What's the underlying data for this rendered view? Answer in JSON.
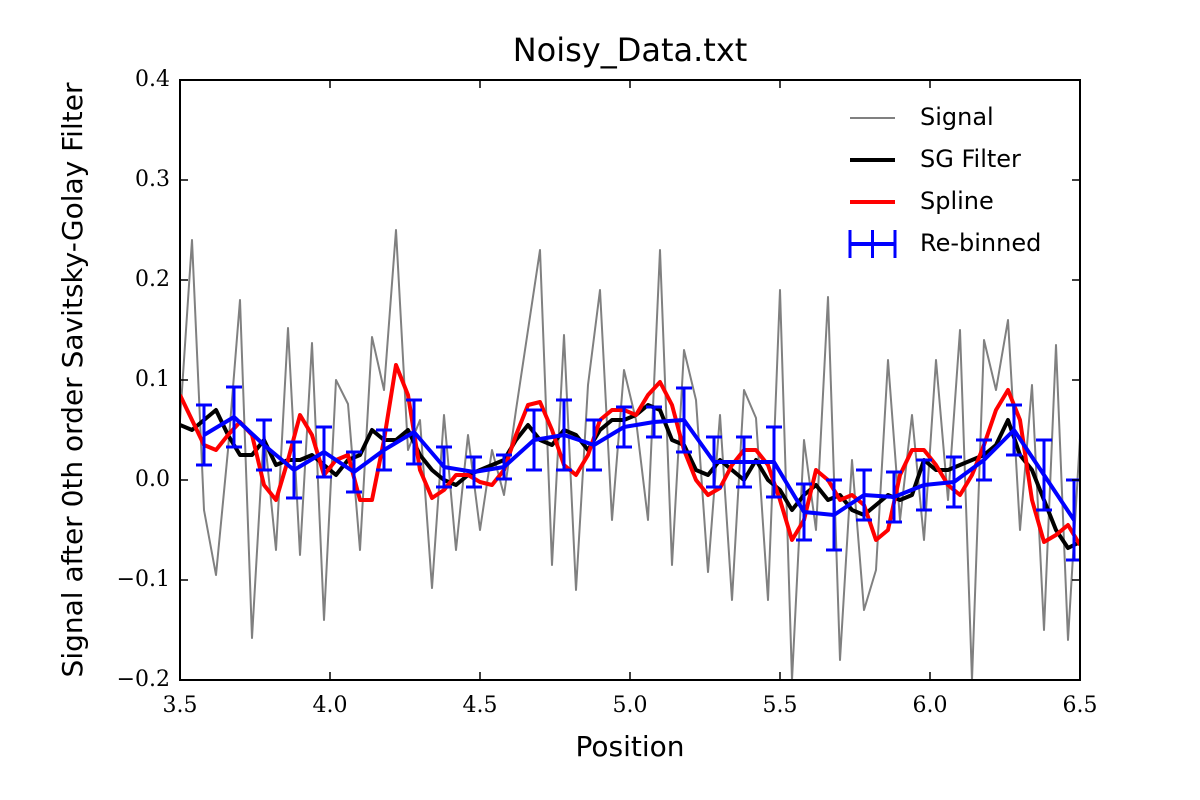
{
  "chart_data": {
    "type": "line",
    "title": "Noisy_Data.txt",
    "x_label": "Position",
    "y_label": "Signal after 0th order Savitsky-Golay Filter",
    "xlim": [
      3.5,
      6.5
    ],
    "ylim": [
      -0.2,
      0.4
    ],
    "xticks": [
      3.5,
      {
        "value": 4,
        "label": "4.0"
      },
      4.5,
      {
        "value": 5,
        "label": "5.0"
      },
      5.5,
      {
        "value": 6,
        "label": "6.0"
      },
      6.5
    ],
    "yticks": [
      {
        "value": -0.2,
        "label": "−0.2"
      },
      {
        "value": -0.1,
        "label": "−0.1"
      },
      {
        "value": 0,
        "label": "0.0"
      },
      0.1,
      0.2,
      0.3,
      0.4
    ],
    "grid": false,
    "legend_position": "upper-right",
    "x": [
      3.5,
      3.54,
      3.58,
      3.62,
      3.66,
      3.7,
      3.74,
      3.78,
      3.82,
      3.86,
      3.9,
      3.94,
      3.98,
      4.02,
      4.06,
      4.1,
      4.14,
      4.18,
      4.22,
      4.26,
      4.3,
      4.34,
      4.38,
      4.42,
      4.46,
      4.5,
      4.54,
      4.58,
      4.62,
      4.66,
      4.7,
      4.74,
      4.78,
      4.82,
      4.86,
      4.9,
      4.94,
      4.98,
      5.02,
      5.06,
      5.1,
      5.14,
      5.18,
      5.22,
      5.26,
      5.3,
      5.34,
      5.38,
      5.42,
      5.46,
      5.5,
      5.54,
      5.58,
      5.62,
      5.66,
      5.7,
      5.74,
      5.78,
      5.82,
      5.86,
      5.9,
      5.94,
      5.98,
      6.02,
      6.06,
      6.1,
      6.14,
      6.18,
      6.22,
      6.26,
      6.3,
      6.34,
      6.38,
      6.42,
      6.46,
      6.5
    ],
    "series": [
      {
        "name": "Signal",
        "color": "#808080",
        "width": 2,
        "values": [
          0.06,
          0.24,
          -0.03,
          -0.095,
          0.03,
          0.18,
          -0.158,
          0.05,
          -0.07,
          0.152,
          -0.075,
          0.137,
          -0.14,
          0.1,
          0.076,
          -0.07,
          0.143,
          0.09,
          0.25,
          0.03,
          0.06,
          -0.108,
          0.065,
          -0.07,
          0.045,
          -0.05,
          0.03,
          -0.015,
          0.07,
          0.15,
          0.23,
          -0.085,
          0.145,
          -0.11,
          0.095,
          0.19,
          -0.04,
          0.11,
          0.06,
          -0.04,
          0.23,
          -0.085,
          0.13,
          0.08,
          -0.092,
          0.065,
          -0.12,
          0.09,
          0.062,
          -0.12,
          0.19,
          -0.2,
          0.04,
          -0.05,
          0.183,
          -0.18,
          0.02,
          -0.13,
          -0.09,
          0.12,
          -0.04,
          0.065,
          -0.06,
          0.12,
          -0.02,
          0.15,
          -0.2,
          0.14,
          0.09,
          0.16,
          -0.05,
          0.095,
          -0.15,
          0.135,
          -0.16,
          0.042
        ]
      },
      {
        "name": "SG Filter",
        "color": "#000000",
        "width": 4,
        "values": [
          0.055,
          0.05,
          0.06,
          0.07,
          0.045,
          0.025,
          0.025,
          0.04,
          0.015,
          0.02,
          0.02,
          0.025,
          0.015,
          0.005,
          0.02,
          0.025,
          0.05,
          0.04,
          0.04,
          0.05,
          0.025,
          0.01,
          0.0,
          -0.005,
          0.005,
          0.01,
          0.015,
          0.02,
          0.04,
          0.055,
          0.04,
          0.035,
          0.05,
          0.045,
          0.03,
          0.05,
          0.06,
          0.06,
          0.065,
          0.075,
          0.07,
          0.04,
          0.035,
          0.01,
          0.005,
          0.02,
          0.01,
          0.0,
          0.02,
          0.0,
          -0.01,
          -0.03,
          -0.015,
          -0.005,
          -0.02,
          -0.015,
          -0.03,
          -0.035,
          -0.025,
          -0.015,
          -0.02,
          -0.015,
          0.02,
          0.01,
          0.01,
          0.015,
          0.02,
          0.025,
          0.035,
          0.06,
          0.025,
          0.01,
          -0.02,
          -0.05,
          -0.068,
          -0.062
        ]
      },
      {
        "name": "Spline",
        "color": "#ff0000",
        "width": 4,
        "values": [
          0.085,
          0.06,
          0.035,
          0.03,
          0.045,
          0.058,
          0.045,
          -0.005,
          -0.02,
          0.02,
          0.065,
          0.045,
          0.005,
          0.02,
          0.025,
          -0.02,
          -0.02,
          0.04,
          0.115,
          0.085,
          0.01,
          -0.018,
          -0.01,
          0.005,
          0.005,
          -0.002,
          -0.005,
          0.01,
          0.045,
          0.075,
          0.078,
          0.05,
          0.015,
          0.005,
          0.025,
          0.06,
          0.07,
          0.07,
          0.065,
          0.085,
          0.098,
          0.075,
          0.03,
          0.0,
          -0.015,
          -0.008,
          0.015,
          0.03,
          0.03,
          0.015,
          -0.02,
          -0.06,
          -0.04,
          0.01,
          0.0,
          -0.02,
          -0.015,
          -0.025,
          -0.06,
          -0.05,
          0.005,
          0.03,
          0.03,
          0.015,
          -0.005,
          -0.015,
          0.005,
          0.035,
          0.07,
          0.09,
          0.06,
          -0.02,
          -0.062,
          -0.055,
          -0.045,
          -0.065
        ]
      },
      {
        "name": "Re-binned",
        "color": "#0000ff",
        "width": 4,
        "errorbars": true,
        "x": [
          3.58,
          3.68,
          3.78,
          3.88,
          3.98,
          4.08,
          4.18,
          4.28,
          4.38,
          4.48,
          4.58,
          4.68,
          4.78,
          4.88,
          4.98,
          5.08,
          5.18,
          5.28,
          5.38,
          5.48,
          5.58,
          5.68,
          5.78,
          5.88,
          5.98,
          6.08,
          6.18,
          6.28,
          6.38,
          6.48
        ],
        "values": [
          0.045,
          0.063,
          0.035,
          0.01,
          0.028,
          0.008,
          0.03,
          0.048,
          0.013,
          0.008,
          0.013,
          0.04,
          0.045,
          0.035,
          0.053,
          0.058,
          0.06,
          0.018,
          0.018,
          0.018,
          -0.032,
          -0.035,
          -0.015,
          -0.017,
          -0.005,
          -0.002,
          0.02,
          0.05,
          0.005,
          -0.04
        ],
        "errors": [
          0.03,
          0.03,
          0.025,
          0.028,
          0.025,
          0.02,
          0.02,
          0.032,
          0.02,
          0.015,
          0.012,
          0.03,
          0.035,
          0.025,
          0.02,
          0.015,
          0.032,
          0.025,
          0.025,
          0.035,
          0.028,
          0.035,
          0.025,
          0.025,
          0.025,
          0.025,
          0.02,
          0.025,
          0.035,
          0.04
        ]
      }
    ]
  }
}
